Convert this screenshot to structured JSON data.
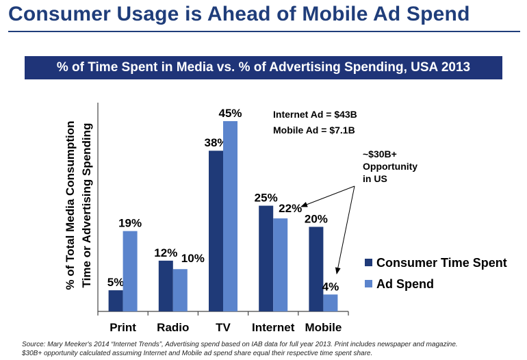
{
  "title": "Consumer Usage is Ahead of Mobile Ad Spend",
  "banner": "% of Time Spent in Media vs. % of Advertising Spending, USA 2013",
  "chart_data": {
    "type": "bar",
    "title": "% of Time Spent in Media vs. % of Advertising Spending, USA 2013",
    "categories": [
      "Print",
      "Radio",
      "TV",
      "Internet",
      "Mobile"
    ],
    "series": [
      {
        "name": "Consumer Time Spent",
        "values": [
          5,
          12,
          38,
          25,
          20
        ],
        "labels": [
          "5%",
          "12%",
          "38%",
          "25%",
          "20%"
        ],
        "color": "#1f3a78"
      },
      {
        "name": "Ad Spend",
        "values": [
          19,
          10,
          45,
          22,
          4
        ],
        "labels": [
          "19%",
          "10%",
          "45%",
          "22%",
          "4%"
        ],
        "color": "#5b84cc"
      }
    ],
    "ylabel_lines": [
      "% of Total Media Consumption",
      "Time or Advertising Spending"
    ],
    "xlabel": "",
    "ylim": [
      0,
      45
    ],
    "grid": false,
    "legend_position": "right",
    "annotations": [
      "Internet  Ad = $43B",
      "Mobile Ad = $7.1B",
      "~$30B+",
      "Opportunity",
      "in US"
    ]
  },
  "source_lines": [
    "Source: Mary Meeker's 2014 “Internet Trends”, Advertising spend based on IAB data for full year 2013. Print includes newspaper and magazine.",
    "$30B+ opportunity calculated  assuming Internet and Mobile ad spend share equal their respective time spent share."
  ]
}
